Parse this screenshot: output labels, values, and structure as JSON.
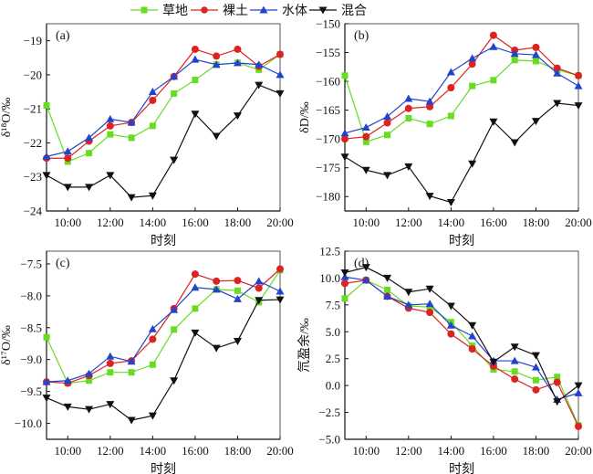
{
  "legend": [
    {
      "name": "草地",
      "color": "#66dd22",
      "marker": "square"
    },
    {
      "name": "裸土",
      "color": "#dd2222",
      "marker": "circle"
    },
    {
      "name": "水体",
      "color": "#2244cc",
      "marker": "triangle-up"
    },
    {
      "name": "混合",
      "color": "#111111",
      "marker": "triangle-down"
    }
  ],
  "chart_data": [
    {
      "type": "line",
      "panel": "(a)",
      "title": "",
      "xlabel": "时刻",
      "ylabel": "δ¹⁸O/‰",
      "x": [
        9,
        10,
        11,
        12,
        13,
        14,
        15,
        16,
        17,
        18,
        19,
        20
      ],
      "xticks": [
        10,
        12,
        14,
        16,
        18,
        20
      ],
      "xtick_labels": [
        "10:00",
        "12:00",
        "14:00",
        "16:00",
        "18:00",
        "20:00"
      ],
      "xlim": [
        9,
        20
      ],
      "ylim": [
        -24,
        -18.5
      ],
      "yticks": [
        -24,
        -23,
        -22,
        -21,
        -20,
        -19
      ],
      "ytick_labels": [
        "−24",
        "−23",
        "−22",
        "−21",
        "−20",
        "−19"
      ],
      "grid": false,
      "series": [
        {
          "name": "草地",
          "values": [
            -20.9,
            -22.55,
            -22.3,
            -21.75,
            -21.85,
            -21.5,
            -20.55,
            -20.15,
            -19.7,
            -19.65,
            -19.85,
            -19.4
          ]
        },
        {
          "name": "裸土",
          "values": [
            -22.45,
            -22.45,
            -21.95,
            -21.5,
            -21.4,
            -20.75,
            -20.05,
            -19.25,
            -19.45,
            -19.25,
            -19.75,
            -19.4
          ]
        },
        {
          "name": "水体",
          "values": [
            -22.4,
            -22.25,
            -21.85,
            -21.3,
            -21.4,
            -20.5,
            -20.05,
            -19.55,
            -19.7,
            -19.65,
            -19.7,
            -20.0
          ]
        },
        {
          "name": "混合",
          "values": [
            -22.95,
            -23.3,
            -23.3,
            -22.95,
            -23.6,
            -23.55,
            -22.5,
            -21.15,
            -21.8,
            -21.2,
            -20.3,
            -20.55
          ]
        }
      ]
    },
    {
      "type": "line",
      "panel": "(b)",
      "title": "",
      "xlabel": "时刻",
      "ylabel": "δD/‰",
      "x": [
        9,
        10,
        11,
        12,
        13,
        14,
        15,
        16,
        17,
        18,
        19,
        20
      ],
      "xticks": [
        10,
        12,
        14,
        16,
        18,
        20
      ],
      "xtick_labels": [
        "10:00",
        "12:00",
        "14:00",
        "16:00",
        "18:00",
        "20:00"
      ],
      "xlim": [
        9,
        20
      ],
      "ylim": [
        -182.5,
        -150
      ],
      "yticks": [
        -180,
        -175,
        -170,
        -165,
        -160,
        -155,
        -150
      ],
      "ytick_labels": [
        "−180",
        "−175",
        "−170",
        "−165",
        "−160",
        "−155",
        "−150"
      ],
      "grid": false,
      "series": [
        {
          "name": "草地",
          "values": [
            -159,
            -170.5,
            -169.3,
            -166.4,
            -167.4,
            -166,
            -160.8,
            -159.8,
            -156.3,
            -156.5,
            -158,
            -159
          ]
        },
        {
          "name": "裸土",
          "values": [
            -170,
            -169.6,
            -167.2,
            -164.7,
            -164.4,
            -161.1,
            -157,
            -152,
            -154.6,
            -154.1,
            -157.7,
            -159
          ]
        },
        {
          "name": "水体",
          "values": [
            -169,
            -168,
            -166.1,
            -163,
            -163.5,
            -158.4,
            -156,
            -154,
            -155.2,
            -155.4,
            -158.6,
            -160.8
          ]
        },
        {
          "name": "混合",
          "values": [
            -173.1,
            -175.4,
            -176.3,
            -174.8,
            -179.9,
            -181,
            -174.3,
            -167,
            -170.6,
            -166.9,
            -163.8,
            -164.2
          ]
        }
      ]
    },
    {
      "type": "line",
      "panel": "(c)",
      "title": "",
      "xlabel": "时刻",
      "ylabel": "δ¹⁷O/‰",
      "x": [
        9,
        10,
        11,
        12,
        13,
        14,
        15,
        16,
        17,
        18,
        19,
        20
      ],
      "xticks": [
        10,
        12,
        14,
        16,
        18,
        20
      ],
      "xtick_labels": [
        "10:00",
        "12:00",
        "14:00",
        "16:00",
        "18:00",
        "20:00"
      ],
      "xlim": [
        9,
        20
      ],
      "ylim": [
        -10.25,
        -7.3
      ],
      "yticks": [
        -10.0,
        -9.5,
        -9.0,
        -8.5,
        -8.0,
        -7.5
      ],
      "ytick_labels": [
        "−10.0",
        "−9.5",
        "−9.0",
        "−8.5",
        "−8.0",
        "−7.5"
      ],
      "grid": false,
      "series": [
        {
          "name": "草地",
          "values": [
            -8.65,
            -9.37,
            -9.33,
            -9.2,
            -9.2,
            -9.08,
            -8.53,
            -8.2,
            -7.9,
            -7.92,
            -8.1,
            -7.6
          ]
        },
        {
          "name": "裸土",
          "values": [
            -9.35,
            -9.37,
            -9.25,
            -9.06,
            -9.02,
            -8.68,
            -8.2,
            -7.66,
            -7.77,
            -7.76,
            -7.88,
            -7.58
          ]
        },
        {
          "name": "水体",
          "values": [
            -9.35,
            -9.33,
            -9.22,
            -8.95,
            -9.03,
            -8.52,
            -8.22,
            -7.87,
            -7.9,
            -8.05,
            -7.77,
            -7.93
          ]
        },
        {
          "name": "混合",
          "values": [
            -9.6,
            -9.74,
            -9.78,
            -9.7,
            -9.95,
            -9.88,
            -9.33,
            -8.58,
            -8.82,
            -8.71,
            -8.07,
            -8.06
          ]
        }
      ]
    },
    {
      "type": "line",
      "panel": "(d)",
      "title": "",
      "xlabel": "时刻",
      "ylabel": "氘盈余/‰",
      "x": [
        9,
        10,
        11,
        12,
        13,
        14,
        15,
        16,
        17,
        18,
        19,
        20
      ],
      "xticks": [
        10,
        12,
        14,
        16,
        18,
        20
      ],
      "xtick_labels": [
        "10:00",
        "12:00",
        "14:00",
        "16:00",
        "18:00",
        "20:00"
      ],
      "xlim": [
        9,
        20
      ],
      "ylim": [
        -5.0,
        12.5
      ],
      "yticks": [
        -5.0,
        -2.5,
        0.0,
        2.5,
        5.0,
        7.5,
        10.0,
        12.5
      ],
      "ytick_labels": [
        "−5.0",
        "−2.5",
        "0.0",
        "2.5",
        "5.0",
        "7.5",
        "10.0",
        "12.5"
      ],
      "grid": false,
      "series": [
        {
          "name": "草地",
          "values": [
            8.1,
            9.8,
            8.9,
            7.4,
            7.3,
            5.9,
            3.7,
            1.5,
            1.3,
            0.5,
            0.8,
            -3.7
          ]
        },
        {
          "name": "裸土",
          "values": [
            9.5,
            9.8,
            8.3,
            7.2,
            6.8,
            4.8,
            3.4,
            1.8,
            0.6,
            -0.4,
            0.3,
            -3.8
          ]
        },
        {
          "name": "水体",
          "values": [
            10.1,
            9.8,
            8.3,
            7.5,
            7.6,
            5.6,
            4.6,
            2.3,
            2.3,
            1.7,
            -1.3,
            -0.7
          ]
        },
        {
          "name": "混合",
          "values": [
            10.5,
            11.0,
            10.0,
            8.7,
            9.0,
            7.4,
            5.6,
            2.2,
            3.6,
            2.8,
            -1.5,
            0.0
          ]
        }
      ]
    }
  ]
}
